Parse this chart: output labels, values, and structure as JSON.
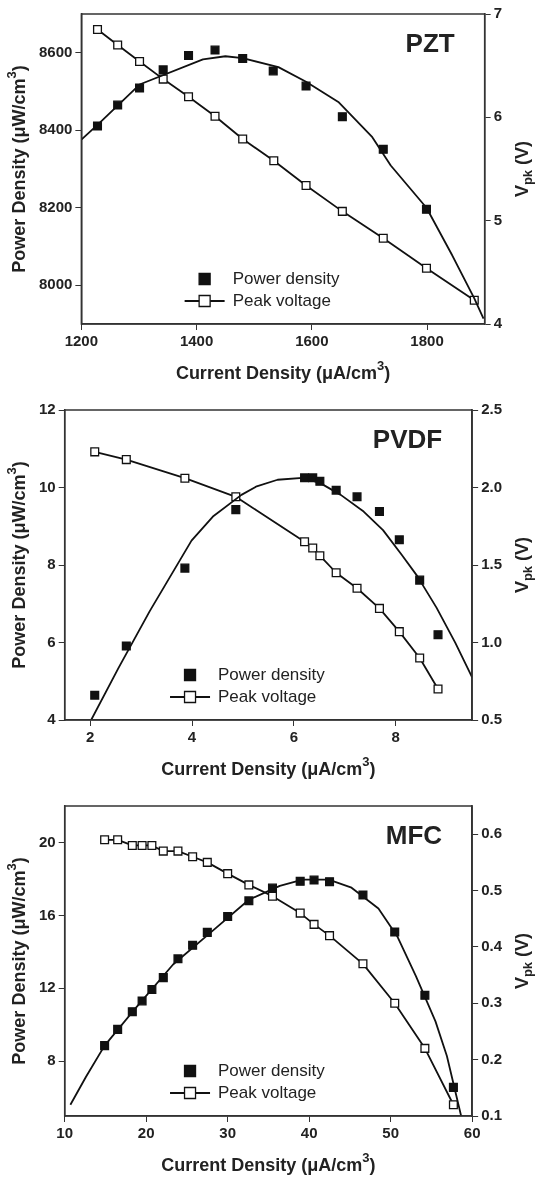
{
  "chart_data": [
    {
      "type": "scatter",
      "title": "PZT",
      "xlabel": "Current Density (μA/cm$^{3}$)",
      "ylabel": "Power Density (μW/cm$^{3}$)",
      "y2label": "V$_{pk}$ (V)",
      "xlim": [
        1200,
        1900
      ],
      "xticks": [
        1200,
        1400,
        1600,
        1800
      ],
      "ylim": [
        7900,
        8700
      ],
      "yticks": [
        8000,
        8200,
        8400,
        8600
      ],
      "y2lim": [
        4,
        7
      ],
      "y2ticks": [
        4,
        5,
        6,
        7
      ],
      "legend": "bottom",
      "grid": false,
      "series": [
        {
          "name": "Power density",
          "marker": "square",
          "color": "#111111",
          "x": [
            1228,
            1263,
            1301,
            1342,
            1386,
            1432,
            1480,
            1533,
            1590,
            1653,
            1724,
            1799
          ],
          "values": [
            8411,
            8465,
            8509,
            8556,
            8593,
            8607,
            8585,
            8553,
            8514,
            8435,
            8351,
            8196
          ]
        },
        {
          "type": "line",
          "marker": "none",
          "color": "#111111",
          "x": [
            1200,
            1228,
            1301,
            1411,
            1450,
            1480,
            1542,
            1590,
            1646,
            1705,
            1737,
            1799,
            1842,
            1882,
            1898
          ],
          "values": [
            8376,
            8414,
            8518,
            8583,
            8591,
            8586,
            8563,
            8525,
            8473,
            8382,
            8309,
            8200,
            8082,
            7966,
            7914
          ]
        },
        {
          "name": "Peak voltage",
          "type": "line",
          "marker": "square",
          "axis": "y2",
          "color": "#111111",
          "x": [
            1228,
            1263,
            1301,
            1342,
            1386,
            1432,
            1480,
            1534,
            1590,
            1653,
            1724,
            1799,
            1882
          ],
          "values": [
            6.85,
            6.7,
            6.54,
            6.37,
            6.2,
            6.01,
            5.79,
            5.58,
            5.34,
            5.09,
            4.83,
            4.54,
            4.23
          ]
        }
      ]
    },
    {
      "type": "scatter",
      "title": "PVDF",
      "xlabel": "Current Density (μA/cm$^{3}$)",
      "ylabel": "Power Density (μW/cm$^{3}$)",
      "y2label": "V$_{pk}$ (V)",
      "xlim": [
        1.5,
        9.5
      ],
      "xticks": [
        2,
        4,
        6,
        8
      ],
      "ylim": [
        4,
        12
      ],
      "yticks": [
        4,
        6,
        8,
        10,
        12
      ],
      "y2lim": [
        0.5,
        2.5
      ],
      "y2ticks": [
        0.5,
        {
          "value": 1,
          "label": "1.0"
        },
        1.5,
        {
          "value": 2,
          "label": "2.0"
        },
        2.5
      ],
      "legend": "bottom",
      "grid": false,
      "series": [
        {
          "name": "Power density",
          "marker": "square",
          "color": "#111111",
          "x": [
            2.09,
            2.71,
            3.86,
            4.86,
            6.21,
            6.37,
            6.51,
            6.83,
            7.24,
            7.68,
            8.07,
            8.47,
            8.83
          ],
          "values": [
            4.64,
            5.91,
            7.92,
            9.43,
            10.25,
            10.25,
            10.16,
            9.93,
            9.76,
            9.38,
            8.65,
            7.61,
            6.2
          ]
        },
        {
          "type": "line",
          "marker": "none",
          "color": "#111111",
          "x": [
            2.02,
            2.56,
            3.17,
            3.99,
            4.41,
            4.97,
            5.27,
            5.68,
            6.17,
            6.51,
            6.92,
            7.37,
            7.75,
            8.12,
            8.42,
            8.8,
            9.17,
            9.5
          ],
          "values": [
            4,
            5.35,
            6.81,
            8.63,
            9.25,
            9.81,
            10.03,
            10.2,
            10.25,
            10.12,
            9.81,
            9.38,
            8.9,
            8.26,
            7.72,
            6.9,
            5.99,
            5.1
          ]
        },
        {
          "name": "Peak voltage",
          "type": "line",
          "marker": "square",
          "axis": "y2",
          "color": "#111111",
          "x": [
            2.09,
            2.71,
            3.86,
            4.86,
            6.21,
            6.37,
            6.51,
            6.83,
            7.24,
            7.68,
            8.07,
            8.47,
            8.83
          ],
          "values": [
            2.23,
            2.18,
            2.06,
            1.94,
            1.65,
            1.61,
            1.56,
            1.45,
            1.35,
            1.22,
            1.07,
            0.9,
            0.7
          ]
        }
      ]
    },
    {
      "type": "scatter",
      "title": "MFC",
      "xlabel": "Current Density (μA/cm$^{3}$)",
      "ylabel": "Power Density (μW/cm$^{3}$)",
      "y2label": "V$_{pk}$ (V)",
      "xlim": [
        10,
        60
      ],
      "xticks": [
        10,
        20,
        30,
        40,
        50,
        60
      ],
      "ylim": [
        5,
        22
      ],
      "yticks": [
        8,
        12,
        16,
        20
      ],
      "y2lim": [
        0.1,
        0.65
      ],
      "y2ticks": [
        0.1,
        0.2,
        0.3,
        0.4,
        0.5,
        0.6
      ],
      "legend": "bottom",
      "grid": false,
      "series": [
        {
          "name": "Power density",
          "marker": "square",
          "color": "#111111",
          "x": [
            14.9,
            16.5,
            18.3,
            19.5,
            20.7,
            22.1,
            23.9,
            25.7,
            27.5,
            30,
            32.6,
            35.5,
            38.9,
            40.6,
            42.5,
            46.6,
            50.5,
            54.2,
            57.7
          ],
          "values": [
            8.86,
            9.75,
            10.72,
            11.31,
            11.94,
            12.59,
            13.62,
            14.36,
            15.07,
            15.94,
            16.8,
            17.5,
            17.87,
            17.94,
            17.85,
            17.12,
            15.09,
            11.62,
            6.57
          ]
        },
        {
          "type": "line",
          "marker": "none",
          "color": "#111111",
          "x": [
            10.7,
            12.6,
            14.9,
            18.6,
            23.3,
            28,
            32.6,
            36.4,
            39.2,
            42.4,
            45.2,
            48.5,
            50.8,
            53.1,
            55.5,
            56.9,
            58.65
          ],
          "values": [
            5.62,
            7.14,
            8.86,
            10.86,
            13.31,
            15.1,
            16.86,
            17.62,
            17.96,
            17.96,
            17.52,
            16.38,
            14.86,
            12.67,
            10.19,
            8.29,
            5
          ]
        },
        {
          "name": "Peak voltage",
          "type": "line",
          "marker": "square",
          "axis": "y2",
          "color": "#111111",
          "x": [
            14.9,
            16.5,
            18.3,
            19.5,
            20.7,
            22.1,
            23.9,
            25.7,
            27.5,
            30,
            32.6,
            35.5,
            38.9,
            40.6,
            42.5,
            46.6,
            50.5,
            54.2,
            57.7
          ],
          "values": [
            0.59,
            0.59,
            0.58,
            0.58,
            0.58,
            0.57,
            0.57,
            0.56,
            0.55,
            0.53,
            0.51,
            0.49,
            0.46,
            0.44,
            0.42,
            0.37,
            0.3,
            0.22,
            0.12
          ]
        }
      ]
    }
  ]
}
